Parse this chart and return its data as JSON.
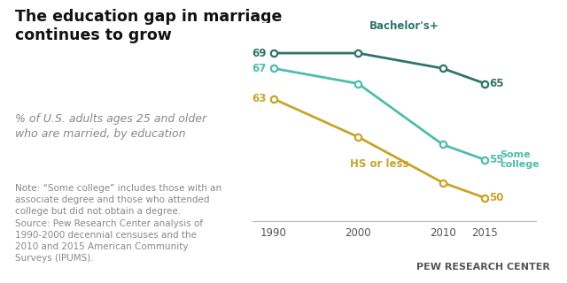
{
  "title": "The education gap in marriage\ncontinues to grow",
  "subtitle": "% of U.S. adults ages 25 and older\nwho are married, by education",
  "note": "Note: “Some college” includes those with an\nassociate degree and those who attended\ncollege but did not obtain a degree.\nSource: Pew Research Center analysis of\n1990-2000 decennial censuses and the\n2010 and 2015 American Community\nSurveys (IPUMS).",
  "watermark": "PEW RESEARCH CENTER",
  "years": [
    1990,
    2000,
    2010,
    2015
  ],
  "series": [
    {
      "name": "Bachelor's+",
      "values": [
        69,
        69,
        67,
        65
      ],
      "color": "#2D7566",
      "label_color": "#2D7566"
    },
    {
      "name": "Some college",
      "values": [
        67,
        65,
        57,
        55
      ],
      "color": "#4DBDAD",
      "label_color": "#4DBDAD"
    },
    {
      "name": "HS or less",
      "values": [
        63,
        58,
        52,
        50
      ],
      "color": "#C9A427",
      "label_color": "#C9A427"
    }
  ],
  "background_color": "#ffffff",
  "plot_bg_color": "#ffffff",
  "axis_line_color": "#bbbbbb",
  "title_fontsize": 12.5,
  "subtitle_fontsize": 9,
  "note_fontsize": 7.5,
  "watermark_fontsize": 8,
  "ylim": [
    47,
    73
  ],
  "xlim": [
    1987.5,
    2021
  ]
}
